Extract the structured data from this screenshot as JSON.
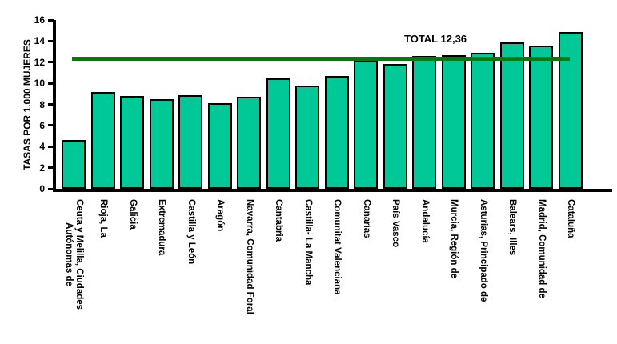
{
  "chart_data": {
    "type": "bar",
    "title": "",
    "xlabel": "",
    "ylabel": "TASAS POR 1.000 MUJERES",
    "ylim": [
      0,
      16
    ],
    "yticks": [
      0,
      2,
      4,
      6,
      8,
      10,
      12,
      14,
      16
    ],
    "grid": false,
    "legend": "none",
    "background_color": "#FFFFFF",
    "bar_color": "#00C896",
    "bar_border_color": "#000000",
    "axis_color": "#000000",
    "categories": [
      "Ceuta y Melilla, Ciudades\nAutónomas de",
      "Rioja, La",
      "Galicia",
      "Extremadura",
      "Castilla y León",
      "Aragón",
      "Navarra, Comunidad Foral",
      "Cantabria",
      "Castilla- La Mancha",
      "Comunitat Valenciana",
      "Canarias",
      "País Vasco",
      "Andalucía",
      "Murcia, Región de",
      "Asturias, Principado de",
      "Balears, Illes",
      "Madrid, Comunidad de",
      "Cataluña"
    ],
    "values": [
      4.6,
      9.2,
      8.8,
      8.5,
      8.9,
      8.1,
      8.7,
      10.5,
      9.8,
      10.7,
      12.2,
      11.8,
      12.6,
      12.7,
      12.9,
      13.9,
      13.6,
      14.9
    ],
    "reference_line": {
      "label": "TOTAL 12,36",
      "value": 12.36,
      "color": "#067A06"
    }
  }
}
